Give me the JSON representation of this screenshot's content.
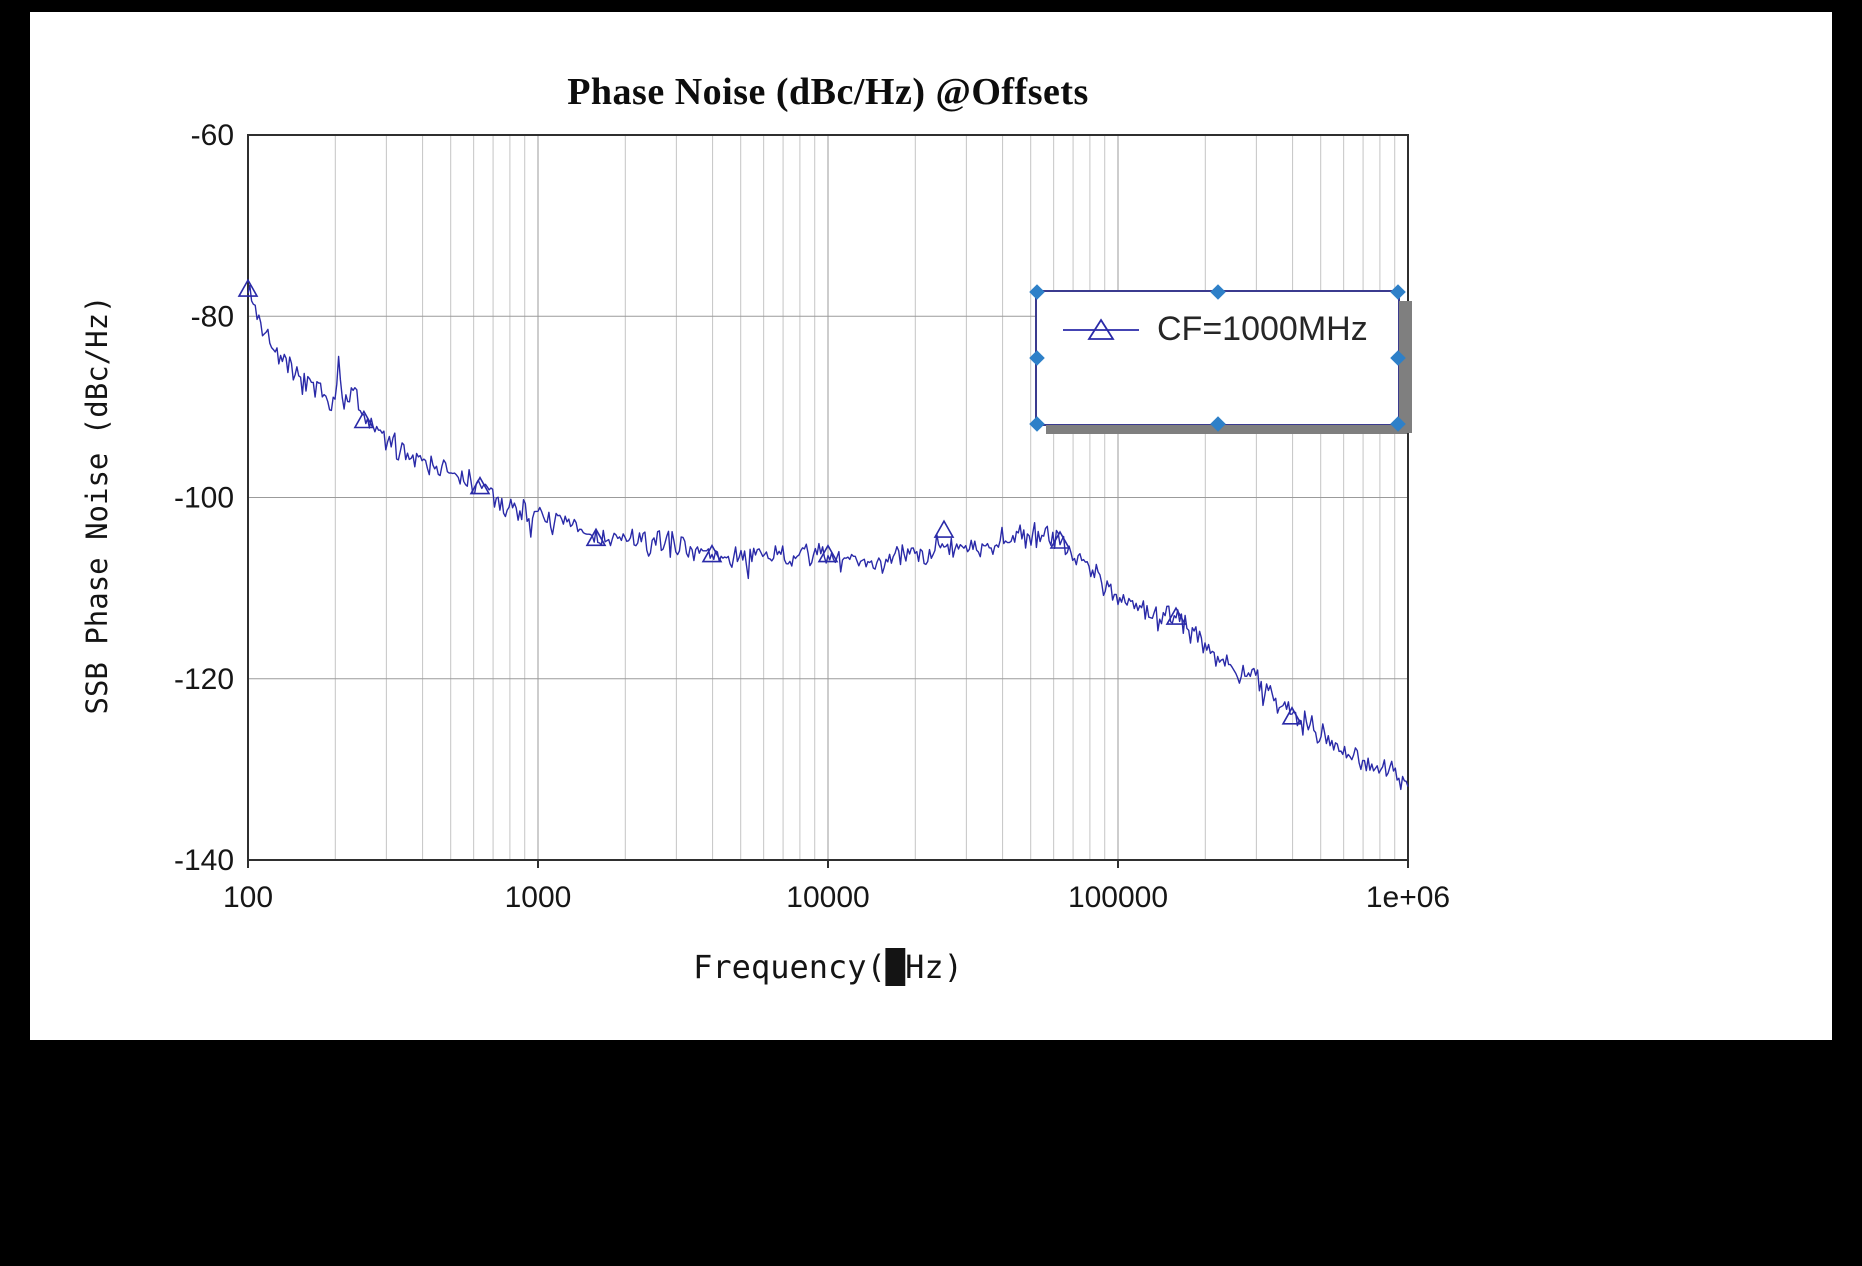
{
  "window": {
    "frame_color": "#000000",
    "paper_color": "#ffffff"
  },
  "colors": {
    "series": "#2a2aa8",
    "grid_minor": "#c4c4c4",
    "grid_major": "#9b9b9b",
    "axis": "#2f2f2f",
    "text": "#161616",
    "legend_border": "#3b3b8f",
    "legend_shadow": "#7f7f7f",
    "selection_handle": "#2e80c8"
  },
  "chart_data": {
    "type": "line",
    "title": "Phase Noise (dBc/Hz) @Offsets",
    "xlabel": "Frequency(█Hz)",
    "ylabel": "SSB Phase Noise (dBc/Hz)",
    "x_scale": "log",
    "xlim": [
      100,
      1000000
    ],
    "ylim": [
      -140,
      -60
    ],
    "x_ticks": [
      "100",
      "1000",
      "10000",
      "100000",
      "1e+06"
    ],
    "x_tick_values": [
      100,
      1000,
      10000,
      100000,
      1000000
    ],
    "y_ticks": [
      "-60",
      "-80",
      "-100",
      "-120",
      "-140"
    ],
    "y_tick_values": [
      -60,
      -80,
      -100,
      -120,
      -140
    ],
    "grid": "x: major+minor (log decades), y: major every 20 dB",
    "legend": {
      "position": "top-right-inside",
      "selected": true,
      "entries": [
        {
          "label": "CF=1000MHz",
          "marker": "open-triangle",
          "color": "#2a2aa8"
        }
      ]
    },
    "series": [
      {
        "name": "CF=1000MHz",
        "color": "#2a2aa8",
        "anchors": [
          [
            100,
            -76
          ],
          [
            104,
            -78.5
          ],
          [
            108,
            -80
          ],
          [
            113,
            -81.5
          ],
          [
            120,
            -83
          ],
          [
            128,
            -84.5
          ],
          [
            136,
            -85.5
          ],
          [
            145,
            -86.5
          ],
          [
            155,
            -87.5
          ],
          [
            165,
            -88
          ],
          [
            178,
            -88.5
          ],
          [
            190,
            -89
          ],
          [
            200,
            -89
          ],
          [
            205,
            -85
          ],
          [
            210,
            -88.5
          ],
          [
            220,
            -90
          ],
          [
            232,
            -87.5
          ],
          [
            240,
            -90.5
          ],
          [
            255,
            -91.5
          ],
          [
            270,
            -92.5
          ],
          [
            290,
            -93.2
          ],
          [
            310,
            -94
          ],
          [
            340,
            -94.8
          ],
          [
            370,
            -95.3
          ],
          [
            400,
            -95.6
          ],
          [
            440,
            -96.3
          ],
          [
            480,
            -97
          ],
          [
            520,
            -97.8
          ],
          [
            560,
            -98.3
          ],
          [
            600,
            -98.3
          ],
          [
            640,
            -98.6
          ],
          [
            700,
            -100
          ],
          [
            760,
            -100.8
          ],
          [
            830,
            -101.3
          ],
          [
            900,
            -101.6
          ],
          [
            1000,
            -102
          ],
          [
            1100,
            -102.6
          ],
          [
            1250,
            -102.8
          ],
          [
            1400,
            -103.6
          ],
          [
            1600,
            -104.6
          ],
          [
            1800,
            -104.6
          ],
          [
            2000,
            -104.6
          ],
          [
            2400,
            -105
          ],
          [
            2800,
            -105
          ],
          [
            3300,
            -105.4
          ],
          [
            3900,
            -106.4
          ],
          [
            4500,
            -106.6
          ],
          [
            5200,
            -106.6
          ],
          [
            6000,
            -106.6
          ],
          [
            7000,
            -106.5
          ],
          [
            8200,
            -106.4
          ],
          [
            9500,
            -106.2
          ],
          [
            11000,
            -106.8
          ],
          [
            13000,
            -107
          ],
          [
            15000,
            -107
          ],
          [
            17000,
            -106.6
          ],
          [
            20000,
            -106.4
          ],
          [
            23000,
            -105.8
          ],
          [
            25000,
            -104.6
          ],
          [
            27000,
            -105.4
          ],
          [
            30000,
            -105.6
          ],
          [
            34000,
            -105.2
          ],
          [
            39000,
            -104.7
          ],
          [
            45000,
            -104.2
          ],
          [
            52000,
            -104
          ],
          [
            58000,
            -104.2
          ],
          [
            65000,
            -105
          ],
          [
            72000,
            -106.2
          ],
          [
            80000,
            -107.8
          ],
          [
            90000,
            -109.5
          ],
          [
            100000,
            -111
          ],
          [
            112000,
            -112
          ],
          [
            125000,
            -112.6
          ],
          [
            140000,
            -113
          ],
          [
            158000,
            -113.2
          ],
          [
            170000,
            -114
          ],
          [
            190000,
            -115.6
          ],
          [
            220000,
            -117.4
          ],
          [
            250000,
            -118.6
          ],
          [
            290000,
            -119.9
          ],
          [
            330000,
            -121.4
          ],
          [
            380000,
            -123.3
          ],
          [
            430000,
            -124.7
          ],
          [
            490000,
            -125.8
          ],
          [
            560000,
            -127
          ],
          [
            640000,
            -128.2
          ],
          [
            730000,
            -129.2
          ],
          [
            830000,
            -130.1
          ],
          [
            940000,
            -130.9
          ],
          [
            1000000,
            -131.4
          ]
        ],
        "markers": [
          [
            100,
            -77
          ],
          [
            251,
            -91.5
          ],
          [
            631,
            -98.8
          ],
          [
            1585,
            -104.5
          ],
          [
            3981,
            -106.3
          ],
          [
            10000,
            -106.3
          ],
          [
            25119,
            -103.6
          ],
          [
            63096,
            -104.8
          ],
          [
            158489,
            -113.2
          ],
          [
            398107,
            -124.2
          ]
        ],
        "noise_db": 1.6,
        "dip_db": 2.5,
        "dip_prob": 0.015,
        "noise_seed": 7,
        "points_per_decade": 160
      }
    ]
  }
}
